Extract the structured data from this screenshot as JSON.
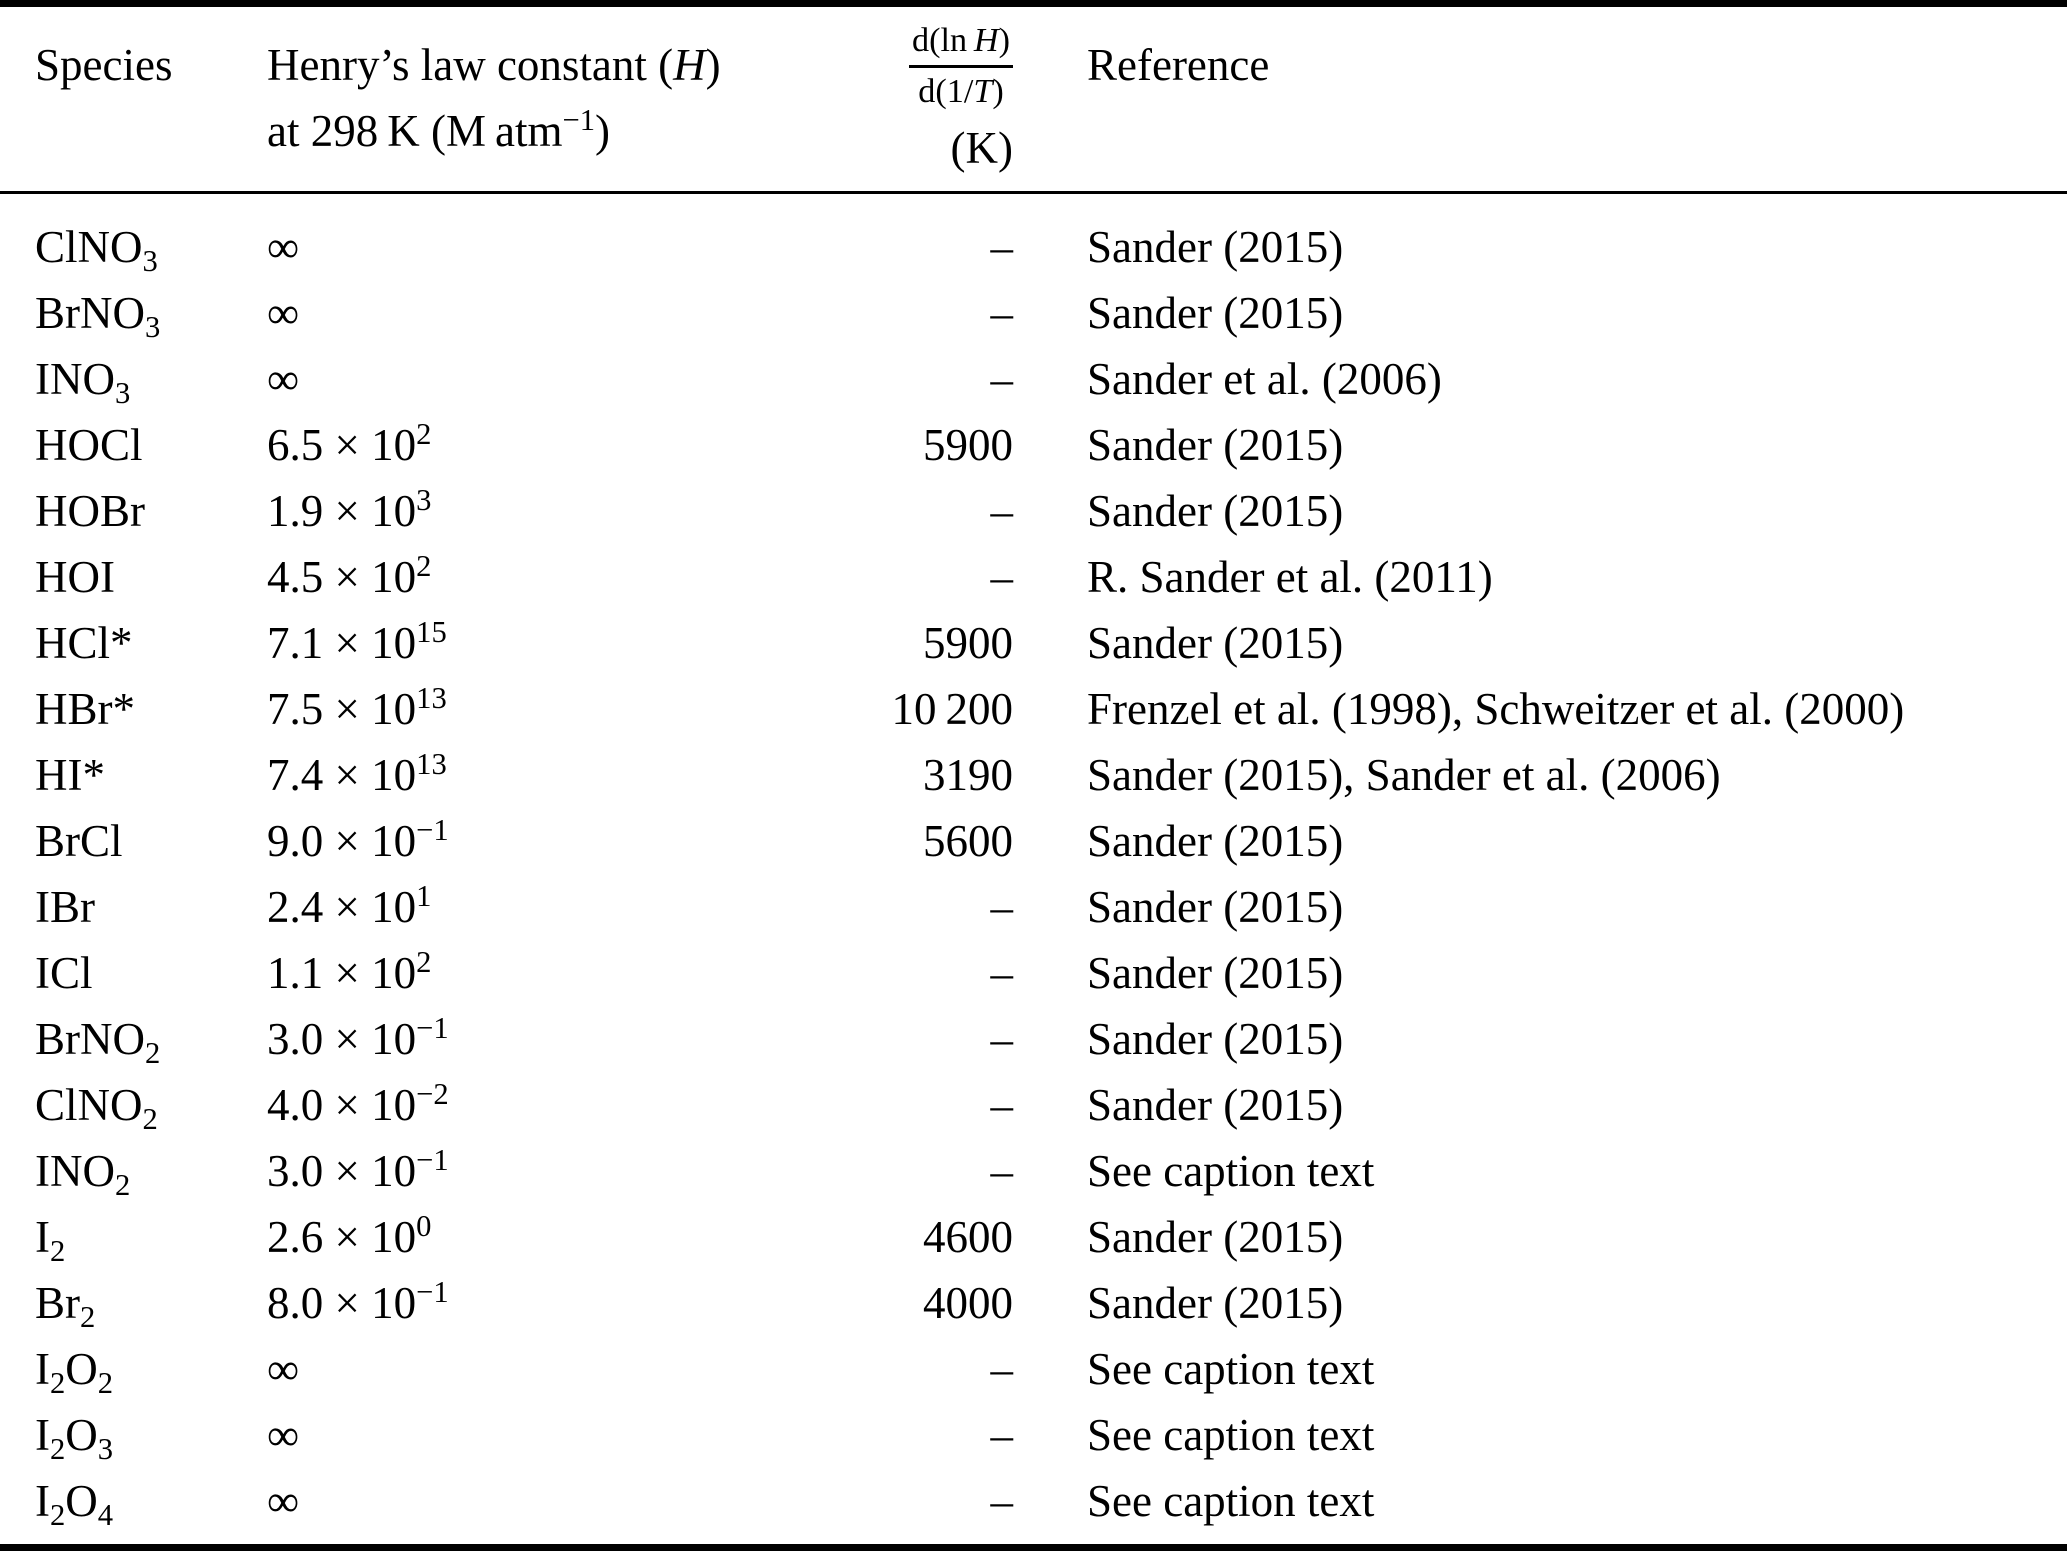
{
  "table": {
    "columns": {
      "species": "Species",
      "henry_line1": "Henry’s law constant (*H*)",
      "henry_line2": "at 298 K (M atm^−1^)",
      "slope_numerator": "d(ln *H*)",
      "slope_denominator": "d(1/*T*)",
      "slope_unit": "(K)",
      "reference": "Reference"
    },
    "rows": [
      {
        "species": "ClNO_3_",
        "henry": "∞",
        "slope": "–",
        "reference": "Sander (2015)"
      },
      {
        "species": "BrNO_3_",
        "henry": "∞",
        "slope": "–",
        "reference": "Sander (2015)"
      },
      {
        "species": "INO_3_",
        "henry": "∞",
        "slope": "–",
        "reference": "Sander et al. (2006)"
      },
      {
        "species": "HOCl",
        "henry": "6.5 × 10^2^",
        "slope": "5900",
        "reference": "Sander (2015)"
      },
      {
        "species": "HOBr",
        "henry": "1.9 × 10^3^",
        "slope": "–",
        "reference": "Sander (2015)"
      },
      {
        "species": "HOI",
        "henry": "4.5 × 10^2^",
        "slope": "–",
        "reference": "R. Sander et al. (2011)"
      },
      {
        "species": "HCl*",
        "henry": "7.1 × 10^15^",
        "slope": "5900",
        "reference": "Sander (2015)"
      },
      {
        "species": "HBr*",
        "henry": "7.5 × 10^13^",
        "slope": "10 200",
        "reference": "Frenzel et al. (1998), Schweitzer et al. (2000)"
      },
      {
        "species": "HI*",
        "henry": "7.4 × 10^13^",
        "slope": "3190",
        "reference": "Sander (2015), Sander et al. (2006)"
      },
      {
        "species": "BrCl",
        "henry": "9.0 × 10^−1^",
        "slope": "5600",
        "reference": "Sander (2015)"
      },
      {
        "species": "IBr",
        "henry": "2.4 × 10^1^",
        "slope": "–",
        "reference": "Sander (2015)"
      },
      {
        "species": "ICl",
        "henry": "1.1 × 10^2^",
        "slope": "–",
        "reference": "Sander (2015)"
      },
      {
        "species": "BrNO_2_",
        "henry": "3.0 × 10^−1^",
        "slope": "–",
        "reference": "Sander (2015)"
      },
      {
        "species": "ClNO_2_",
        "henry": "4.0 × 10^−2^",
        "slope": "–",
        "reference": "Sander (2015)"
      },
      {
        "species": "INO_2_",
        "henry": "3.0 × 10^−1^",
        "slope": "–",
        "reference": "See caption text"
      },
      {
        "species": "I_2_",
        "henry": "2.6 × 10^0^",
        "slope": "4600",
        "reference": "Sander (2015)"
      },
      {
        "species": "Br_2_",
        "henry": "8.0 × 10^−1^",
        "slope": "4000",
        "reference": "Sander (2015)"
      },
      {
        "species": "I_2_O_2_",
        "henry": "∞",
        "slope": "–",
        "reference": "See caption text"
      },
      {
        "species": "I_2_O_3_",
        "henry": "∞",
        "slope": "–",
        "reference": "See caption text"
      },
      {
        "species": "I_2_O_4_",
        "henry": "∞",
        "slope": "–",
        "reference": "See caption text"
      }
    ]
  },
  "colors": {
    "text": "#000000",
    "background": "#ffffff",
    "rule": "#000000"
  }
}
